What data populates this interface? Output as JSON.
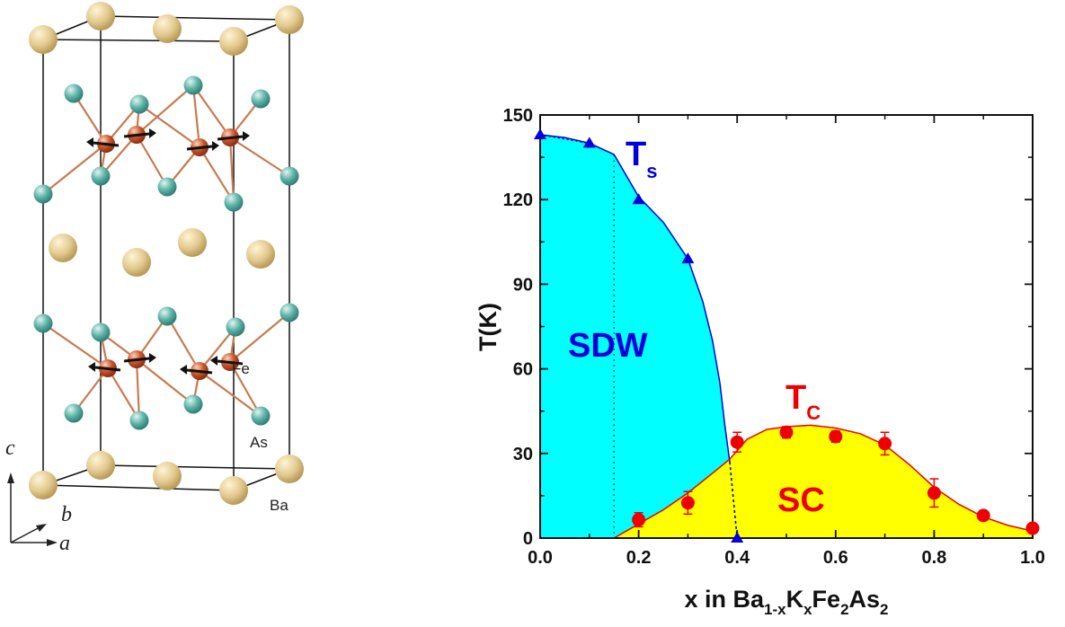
{
  "crystal": {
    "atom_labels": {
      "fe": "Fe",
      "as": "As",
      "ba": "Ba"
    },
    "axis_labels": {
      "c": "c",
      "b": "b",
      "a": "a"
    },
    "colors": {
      "ba": "#e2c98e",
      "as": "#5fb3a8",
      "fe": "#c8542a",
      "bond": "#c87a4f",
      "spin": "#111111",
      "cell": "#111111"
    }
  },
  "chart_data": {
    "type": "scatter",
    "xlabel_parts": [
      {
        "t": "x in Ba",
        "sub": false
      },
      {
        "t": "1-x",
        "sub": true
      },
      {
        "t": "K",
        "sub": false
      },
      {
        "t": "x",
        "sub": true
      },
      {
        "t": "Fe",
        "sub": false
      },
      {
        "t": "2",
        "sub": true
      },
      {
        "t": "As",
        "sub": false
      },
      {
        "t": "2",
        "sub": true
      }
    ],
    "ylabel": "T(K)",
    "xlim": [
      0.0,
      1.0
    ],
    "ylim": [
      0,
      150
    ],
    "x_ticks": [
      "0.0",
      "0.2",
      "0.4",
      "0.6",
      "0.8",
      "1.0"
    ],
    "y_ticks": [
      "0",
      "30",
      "60",
      "90",
      "120",
      "150"
    ],
    "series": [
      {
        "name": "T_s",
        "label_main": "T",
        "label_sub": "s",
        "color": "#0000dd",
        "marker": "triangle",
        "points": [
          {
            "x": 0.0,
            "y": 143
          },
          {
            "x": 0.1,
            "y": 140
          },
          {
            "x": 0.2,
            "y": 120
          },
          {
            "x": 0.3,
            "y": 99
          },
          {
            "x": 0.4,
            "y": 0
          }
        ]
      },
      {
        "name": "T_c",
        "label_main": "T",
        "label_sub": "C",
        "color": "#ee0000",
        "marker": "circle",
        "points": [
          {
            "x": 0.2,
            "y": 6.5,
            "err": 2.5
          },
          {
            "x": 0.3,
            "y": 12.5,
            "err": 4
          },
          {
            "x": 0.4,
            "y": 34,
            "err": 3.5
          },
          {
            "x": 0.5,
            "y": 37.5,
            "err": 2
          },
          {
            "x": 0.6,
            "y": 36,
            "err": 2
          },
          {
            "x": 0.7,
            "y": 33.5,
            "err": 4
          },
          {
            "x": 0.8,
            "y": 16,
            "err": 5
          },
          {
            "x": 0.9,
            "y": 8,
            "err": 1.5
          },
          {
            "x": 1.0,
            "y": 3.5,
            "err": 1
          }
        ]
      }
    ],
    "regions": [
      {
        "name": "SDW",
        "color": "#00ffff",
        "label_color": "#0000dd"
      },
      {
        "name": "SC",
        "color": "#ffff00",
        "label_color": "#ee0000"
      }
    ],
    "sdw_boundary": [
      [
        0.0,
        143
      ],
      [
        0.05,
        142
      ],
      [
        0.1,
        140
      ],
      [
        0.15,
        136
      ],
      [
        0.2,
        121
      ],
      [
        0.25,
        112
      ],
      [
        0.3,
        99
      ],
      [
        0.33,
        84
      ],
      [
        0.35,
        70
      ],
      [
        0.365,
        55
      ],
      [
        0.375,
        40
      ],
      [
        0.385,
        27
      ]
    ],
    "sc_dome": [
      [
        0.15,
        0
      ],
      [
        0.2,
        5
      ],
      [
        0.25,
        10
      ],
      [
        0.3,
        16
      ],
      [
        0.35,
        23
      ],
      [
        0.385,
        28
      ],
      [
        0.42,
        35
      ],
      [
        0.46,
        38.5
      ],
      [
        0.5,
        39.5
      ],
      [
        0.55,
        40
      ],
      [
        0.6,
        39
      ],
      [
        0.65,
        37
      ],
      [
        0.7,
        33
      ],
      [
        0.75,
        26
      ],
      [
        0.8,
        18
      ],
      [
        0.85,
        12
      ],
      [
        0.9,
        7.5
      ],
      [
        0.95,
        4.5
      ],
      [
        1.0,
        2.5
      ]
    ],
    "grid": false
  }
}
